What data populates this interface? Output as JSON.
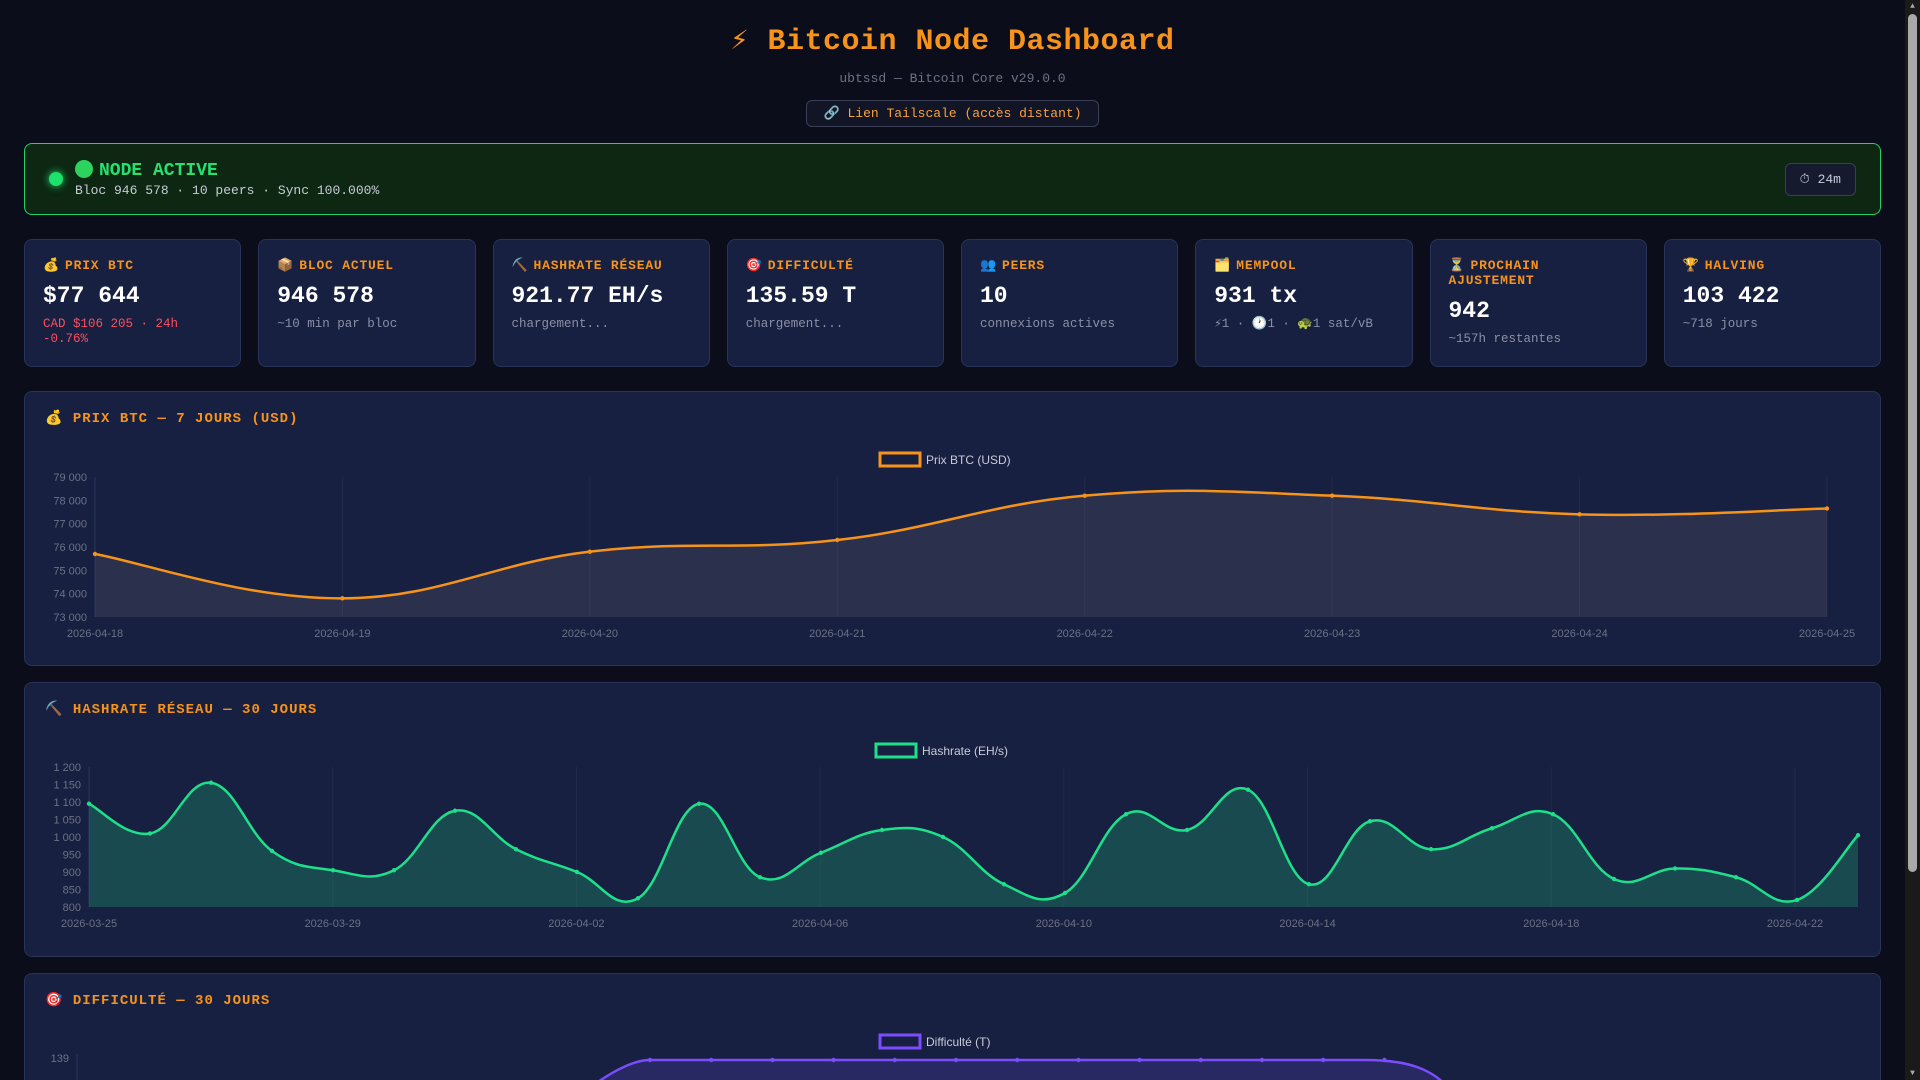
{
  "header": {
    "title": "⚡ Bitcoin Node Dashboard",
    "subtitle": "ubtssd — Bitcoin Core v29.0.0",
    "tailscale_link": "🔗 Lien Tailscale (accès distant)"
  },
  "status": {
    "label": "NODE ACTIVE",
    "detail": "Bloc 946 578 · 10 peers · Sync 100.000%",
    "uptime": "⏱ 24m",
    "color": "#1ee06d"
  },
  "cards": [
    {
      "icon": "💰",
      "label": "PRIX BTC",
      "value": "$77 644",
      "sub": "CAD $106 205 · 24h -0.76%",
      "sub_color": "red"
    },
    {
      "icon": "📦",
      "label": "BLOC ACTUEL",
      "value": "946 578",
      "sub": "~10 min par bloc"
    },
    {
      "icon": "⛏️",
      "label": "HASHRATE RÉSEAU",
      "value": "921.77 EH/s",
      "sub": "chargement..."
    },
    {
      "icon": "🎯",
      "label": "DIFFICULTÉ",
      "value": "135.59 T",
      "sub": "chargement..."
    },
    {
      "icon": "👥",
      "label": "PEERS",
      "value": "10",
      "sub": "connexions actives"
    },
    {
      "icon": "🗂️",
      "label": "MEMPOOL",
      "value": "931 tx",
      "sub": "⚡1 · 🕐1 · 🐢1 sat/vB"
    },
    {
      "icon": "⏳",
      "label": "PROCHAIN AJUSTEMENT",
      "value": "942",
      "sub": "~157h restantes"
    },
    {
      "icon": "🏆",
      "label": "HALVING",
      "value": "103 422",
      "sub": "~718 jours"
    }
  ],
  "panels": {
    "price_title": "💰 PRIX BTC — 7 JOURS (USD)",
    "hash_title": "⛏️ HASHRATE RÉSEAU — 30 JOURS",
    "diff_title": "🎯 DIFFICULTÉ — 30 JOURS"
  },
  "chart_data": [
    {
      "type": "line",
      "series": [
        {
          "name": "Prix BTC (USD)",
          "color": "#f7931a",
          "x": [
            "2026-04-18",
            "2026-04-19",
            "2026-04-20",
            "2026-04-21",
            "2026-04-22",
            "2026-04-23",
            "2026-04-24",
            "2026-04-25"
          ],
          "y": [
            75700,
            73800,
            75800,
            76300,
            78200,
            78200,
            77400,
            77650
          ]
        }
      ],
      "yticks": [
        "79 000",
        "78 000",
        "77 000",
        "76 000",
        "75 000",
        "74 000",
        "73 000"
      ],
      "xticks": [
        "2026-04-18",
        "2026-04-19",
        "2026-04-20",
        "2026-04-21",
        "2026-04-22",
        "2026-04-23",
        "2026-04-24",
        "2026-04-25"
      ],
      "ylim": [
        73000,
        79000
      ]
    },
    {
      "type": "area",
      "series": [
        {
          "name": "Hashrate (EH/s)",
          "color": "#1ee08a",
          "x": [
            "2026-03-25",
            "2026-03-26",
            "2026-03-27",
            "2026-03-28",
            "2026-03-29",
            "2026-03-30",
            "2026-03-31",
            "2026-04-01",
            "2026-04-02",
            "2026-04-03",
            "2026-04-04",
            "2026-04-05",
            "2026-04-06",
            "2026-04-07",
            "2026-04-08",
            "2026-04-09",
            "2026-04-10",
            "2026-04-11",
            "2026-04-12",
            "2026-04-13",
            "2026-04-14",
            "2026-04-15",
            "2026-04-16",
            "2026-04-17",
            "2026-04-18",
            "2026-04-19",
            "2026-04-20",
            "2026-04-21",
            "2026-04-22",
            "2026-04-23"
          ],
          "y": [
            1095,
            1010,
            1155,
            960,
            905,
            905,
            1075,
            965,
            900,
            825,
            1095,
            885,
            955,
            1020,
            1000,
            865,
            840,
            1065,
            1020,
            1135,
            865,
            1045,
            965,
            1025,
            1065,
            880,
            910,
            885,
            820,
            1005
          ]
        }
      ],
      "yticks": [
        "1 200",
        "1 150",
        "1 100",
        "1 050",
        "1 000",
        "950",
        "900",
        "850",
        "800"
      ],
      "xticks": [
        "2026-03-25",
        "2026-03-29",
        "2026-04-02",
        "2026-04-06",
        "2026-04-10",
        "2026-04-14",
        "2026-04-18",
        "2026-04-22"
      ],
      "ylim": [
        800,
        1200
      ]
    },
    {
      "type": "line",
      "series": [
        {
          "name": "Difficulté (T)",
          "color": "#7b4dff",
          "y": [
            139
          ]
        }
      ],
      "yticks": [
        "139"
      ]
    }
  ]
}
